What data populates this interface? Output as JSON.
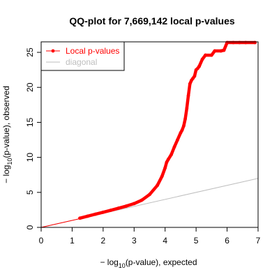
{
  "chart_data": {
    "type": "scatter",
    "title": "QQ-plot for 7,669,142 local p-values",
    "xlabel": {
      "prefix": "− log",
      "subscript": "10",
      "suffix": "(p-value), expected"
    },
    "ylabel": {
      "prefix": "− log",
      "subscript": "10",
      "suffix": "(p-value), observed"
    },
    "xlim": [
      0,
      7
    ],
    "ylim": [
      0,
      26.5
    ],
    "x_ticks": [
      0,
      1,
      2,
      3,
      4,
      5,
      6,
      7
    ],
    "y_ticks": [
      0,
      5,
      10,
      15,
      20,
      25
    ],
    "grid": false,
    "legend_position": "top-left",
    "series": [
      {
        "name": "Local p-values",
        "color": "#ff0000",
        "style": "points",
        "points": [
          [
            1.25,
            1.32
          ],
          [
            1.5,
            1.6
          ],
          [
            1.75,
            1.88
          ],
          [
            2.0,
            2.16
          ],
          [
            2.25,
            2.45
          ],
          [
            2.5,
            2.75
          ],
          [
            2.75,
            3.05
          ],
          [
            3.0,
            3.4
          ],
          [
            3.25,
            3.9
          ],
          [
            3.5,
            4.7
          ],
          [
            3.75,
            6.0
          ],
          [
            3.9,
            7.3
          ],
          [
            4.0,
            8.5
          ],
          [
            4.05,
            9.3
          ],
          [
            4.1,
            9.7
          ],
          [
            4.2,
            10.4
          ],
          [
            4.3,
            11.5
          ],
          [
            4.4,
            12.5
          ],
          [
            4.5,
            13.5
          ],
          [
            4.55,
            13.9
          ],
          [
            4.6,
            14.5
          ],
          [
            4.65,
            15.5
          ],
          [
            4.7,
            17.0
          ],
          [
            4.75,
            18.8
          ],
          [
            4.8,
            20.5
          ],
          [
            4.85,
            21.0
          ],
          [
            4.9,
            21.3
          ],
          [
            4.95,
            21.6
          ],
          [
            5.0,
            22.5
          ],
          [
            5.05,
            22.7
          ],
          [
            5.1,
            23.0
          ],
          [
            5.2,
            24.0
          ],
          [
            5.3,
            24.6
          ],
          [
            5.5,
            24.6
          ],
          [
            5.6,
            25.2
          ],
          [
            5.8,
            25.2
          ],
          [
            5.9,
            25.3
          ],
          [
            6.0,
            26.4
          ],
          [
            6.2,
            26.4
          ],
          [
            6.4,
            26.4
          ],
          [
            6.6,
            26.4
          ],
          [
            6.9,
            26.4
          ]
        ]
      },
      {
        "name": "diagonal",
        "color": "#bebebe",
        "style": "line",
        "points": [
          [
            0,
            0
          ],
          [
            7,
            7
          ]
        ]
      }
    ],
    "fit_line": {
      "color": "#ff0000",
      "points": [
        [
          0,
          0
        ],
        [
          1.25,
          1.25
        ]
      ]
    }
  }
}
